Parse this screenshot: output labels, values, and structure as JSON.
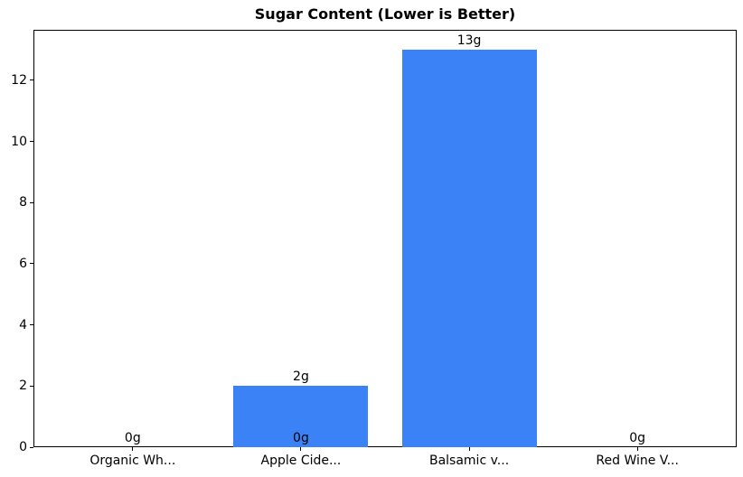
{
  "chart_data": {
    "type": "bar",
    "title": "Sugar Content (Lower is Better)",
    "categories": [
      "Organic Wh...",
      "Apple Cide...",
      "Balsamic v...",
      "Red Wine V..."
    ],
    "values": [
      0,
      2,
      13,
      0
    ],
    "bar_labels": [
      "0g",
      "2g",
      "13g",
      "0g"
    ],
    "extra_labels": [
      {
        "category_index": 1,
        "value": 0,
        "label": "0g"
      }
    ],
    "xlabel": "",
    "ylabel": "",
    "y_ticks": [
      0,
      2,
      4,
      6,
      8,
      10,
      12
    ],
    "ylim": [
      0,
      13.65
    ],
    "bar_color": "#3b82f6",
    "text_color": "#000000",
    "axis_color": "#000000",
    "background_color": "#ffffff",
    "bar_width_ratio": 0.8,
    "grid": false,
    "legend": null
  }
}
